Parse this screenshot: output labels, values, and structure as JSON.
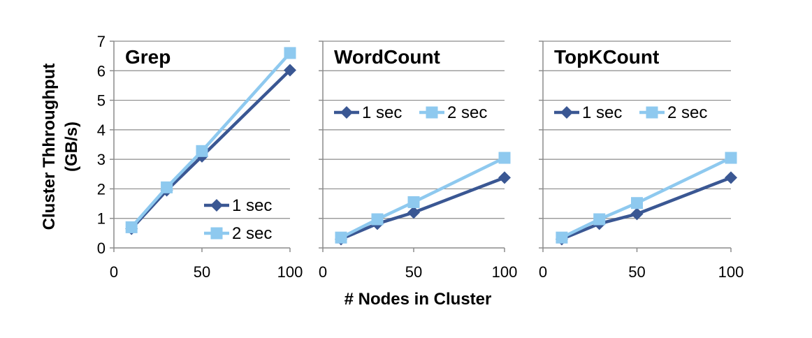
{
  "colors": {
    "series_1": "#3a5793",
    "series_2": "#8ec9ef",
    "grid": "#8c8c8c",
    "axis": "#8c8c8c"
  },
  "figure": {
    "ylabel_line1": "Cluster Thhroughput",
    "ylabel_line2": "(GB/s)",
    "xlabel": "# Nodes in Cluster"
  },
  "chart_data": [
    {
      "type": "line",
      "title": "Grep",
      "x": [
        10,
        30,
        50,
        100
      ],
      "xlim": [
        0,
        100
      ],
      "xticks": [
        0,
        50,
        100
      ],
      "ylim": [
        0,
        7
      ],
      "yticks": [
        0,
        1,
        2,
        3,
        4,
        5,
        6,
        7
      ],
      "show_yticks": true,
      "grid": true,
      "legend": "bottom-right",
      "series": [
        {
          "name": "1 sec",
          "marker": "diamond",
          "values": [
            0.65,
            1.95,
            3.1,
            6.02
          ]
        },
        {
          "name": "2 sec",
          "marker": "square",
          "values": [
            0.7,
            2.05,
            3.28,
            6.6
          ]
        }
      ]
    },
    {
      "type": "line",
      "title": "WordCount",
      "x": [
        10,
        30,
        50,
        100
      ],
      "xlim": [
        0,
        100
      ],
      "xticks": [
        0,
        50,
        100
      ],
      "ylim": [
        0,
        7
      ],
      "yticks": [
        0,
        1,
        2,
        3,
        4,
        5,
        6,
        7
      ],
      "show_yticks": false,
      "grid": true,
      "legend": "upper-center",
      "series": [
        {
          "name": "1 sec",
          "marker": "diamond",
          "values": [
            0.3,
            0.82,
            1.2,
            2.38
          ]
        },
        {
          "name": "2 sec",
          "marker": "square",
          "values": [
            0.35,
            0.97,
            1.55,
            3.05
          ]
        }
      ]
    },
    {
      "type": "line",
      "title": "TopKCount",
      "x": [
        10,
        30,
        50,
        100
      ],
      "xlim": [
        0,
        100
      ],
      "xticks": [
        0,
        50,
        100
      ],
      "ylim": [
        0,
        7
      ],
      "yticks": [
        0,
        1,
        2,
        3,
        4,
        5,
        6,
        7
      ],
      "show_yticks": false,
      "grid": true,
      "legend": "upper-center",
      "series": [
        {
          "name": "1 sec",
          "marker": "diamond",
          "values": [
            0.3,
            0.82,
            1.15,
            2.38
          ]
        },
        {
          "name": "2 sec",
          "marker": "square",
          "values": [
            0.35,
            0.97,
            1.52,
            3.05
          ]
        }
      ]
    }
  ]
}
